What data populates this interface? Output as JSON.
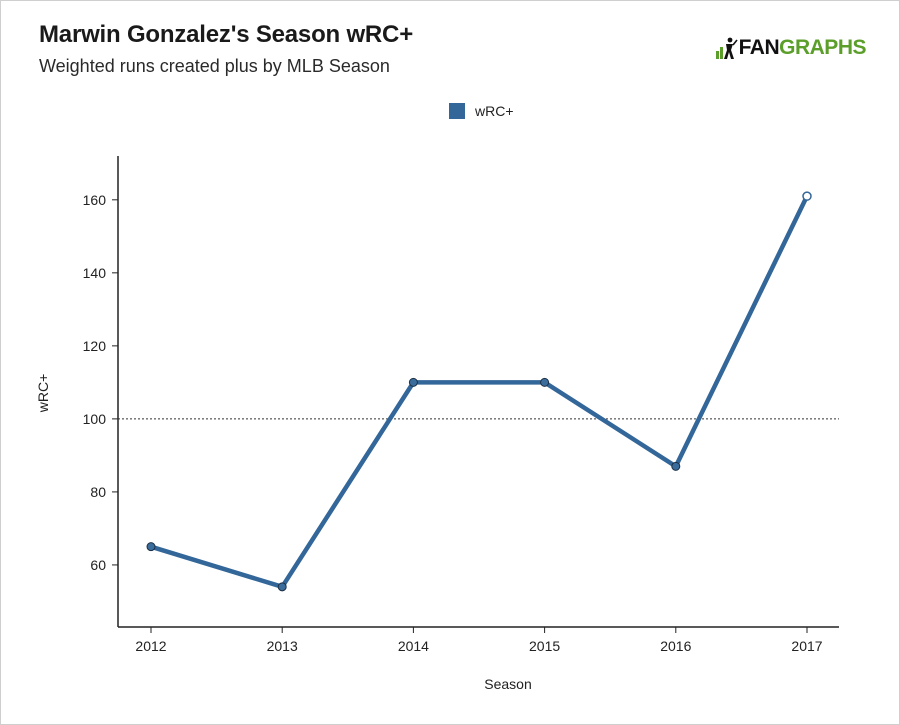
{
  "header": {
    "title": "Marwin Gonzalez's Season wRC+",
    "subtitle": "Weighted runs created plus by MLB Season"
  },
  "logo": {
    "part1": "FAN",
    "part2": "GRAPHS",
    "icon": "fangraphs-logo-icon"
  },
  "colors": {
    "series": "#336699",
    "logo_green": "#5b9e2a",
    "marker_fill": "#3a6d9c"
  },
  "chart_data": {
    "type": "line",
    "title": "Marwin Gonzalez's Season wRC+",
    "subtitle": "Weighted runs created plus by MLB Season",
    "xlabel": "Season",
    "ylabel": "wRC+",
    "categories": [
      "2012",
      "2013",
      "2014",
      "2015",
      "2016",
      "2017"
    ],
    "series": [
      {
        "name": "wRC+",
        "values": [
          65,
          54,
          110,
          110,
          87,
          161
        ]
      }
    ],
    "ylim": [
      43,
      172
    ],
    "yticks": [
      60,
      80,
      100,
      120,
      140,
      160
    ],
    "reference_line": 100,
    "legend": "top-center",
    "grid": false
  }
}
